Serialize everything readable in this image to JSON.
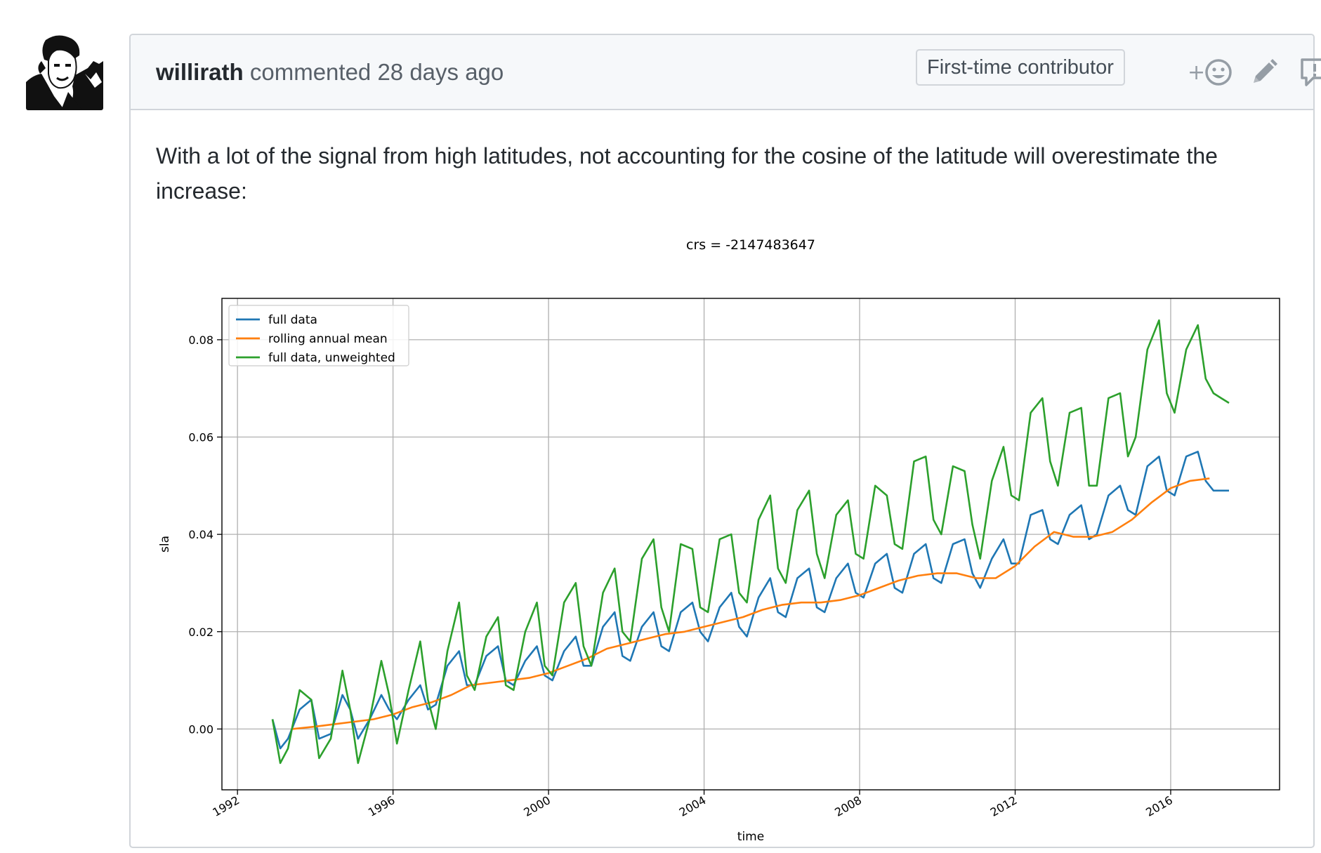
{
  "comment": {
    "author": "willirath",
    "action": "commented",
    "time": "28 days ago",
    "badge": "First-time contributor",
    "icons": [
      "add-reaction-icon",
      "edit-pencil-icon",
      "report-icon"
    ],
    "body": "With a lot of the signal from high latitudes, not accounting for the cosine of the latitude will overestimate the increase:"
  },
  "chart_data": {
    "type": "line",
    "title": "crs = -2147483647",
    "xlabel": "time",
    "ylabel": "sla",
    "xlim": [
      1991.6,
      2018.8
    ],
    "ylim": [
      -0.0125,
      0.0885
    ],
    "xticks": [
      1992,
      1996,
      2000,
      2004,
      2008,
      2012,
      2016
    ],
    "yticks": [
      0.0,
      0.02,
      0.04,
      0.06,
      0.08
    ],
    "ytick_labels": [
      "0.00",
      "0.02",
      "0.04",
      "0.06",
      "0.08"
    ],
    "grid": true,
    "legend_position": "top-left",
    "series": [
      {
        "name": "full data",
        "color": "#1f77b4",
        "x": [
          1992.9,
          1993.1,
          1993.3,
          1993.6,
          1993.9,
          1994.1,
          1994.4,
          1994.7,
          1994.9,
          1995.1,
          1995.4,
          1995.7,
          1995.9,
          1996.1,
          1996.4,
          1996.7,
          1996.9,
          1997.1,
          1997.4,
          1997.7,
          1997.9,
          1998.1,
          1998.4,
          1998.7,
          1998.9,
          1999.1,
          1999.4,
          1999.7,
          1999.9,
          2000.1,
          2000.4,
          2000.7,
          2000.9,
          2001.1,
          2001.4,
          2001.7,
          2001.9,
          2002.1,
          2002.4,
          2002.7,
          2002.9,
          2003.1,
          2003.4,
          2003.7,
          2003.9,
          2004.1,
          2004.4,
          2004.7,
          2004.9,
          2005.1,
          2005.4,
          2005.7,
          2005.9,
          2006.1,
          2006.4,
          2006.7,
          2006.9,
          2007.1,
          2007.4,
          2007.7,
          2007.9,
          2008.1,
          2008.4,
          2008.7,
          2008.9,
          2009.1,
          2009.4,
          2009.7,
          2009.9,
          2010.1,
          2010.4,
          2010.7,
          2010.9,
          2011.1,
          2011.4,
          2011.7,
          2011.9,
          2012.1,
          2012.4,
          2012.7,
          2012.9,
          2013.1,
          2013.4,
          2013.7,
          2013.9,
          2014.1,
          2014.4,
          2014.7,
          2014.9,
          2015.1,
          2015.4,
          2015.7,
          2015.9,
          2016.1,
          2016.4,
          2016.7,
          2016.9,
          2017.1,
          2017.3,
          2017.5
        ],
        "y": [
          0.002,
          -0.004,
          -0.002,
          0.004,
          0.006,
          -0.002,
          -0.001,
          0.007,
          0.004,
          -0.002,
          0.002,
          0.007,
          0.004,
          0.002,
          0.006,
          0.009,
          0.004,
          0.005,
          0.013,
          0.016,
          0.009,
          0.009,
          0.015,
          0.017,
          0.01,
          0.009,
          0.014,
          0.017,
          0.011,
          0.01,
          0.016,
          0.019,
          0.013,
          0.013,
          0.021,
          0.024,
          0.015,
          0.014,
          0.021,
          0.024,
          0.017,
          0.016,
          0.024,
          0.026,
          0.02,
          0.018,
          0.025,
          0.028,
          0.021,
          0.019,
          0.027,
          0.031,
          0.024,
          0.023,
          0.031,
          0.033,
          0.025,
          0.024,
          0.031,
          0.034,
          0.028,
          0.027,
          0.034,
          0.036,
          0.029,
          0.028,
          0.036,
          0.038,
          0.031,
          0.03,
          0.038,
          0.039,
          0.032,
          0.029,
          0.035,
          0.039,
          0.034,
          0.034,
          0.044,
          0.045,
          0.039,
          0.038,
          0.044,
          0.046,
          0.039,
          0.04,
          0.048,
          0.05,
          0.045,
          0.044,
          0.054,
          0.056,
          0.049,
          0.048,
          0.056,
          0.057,
          0.051,
          0.049,
          0.049,
          0.049
        ]
      },
      {
        "name": "rolling annual mean",
        "color": "#ff7f0e",
        "x": [
          1993.4,
          1994.0,
          1994.5,
          1995.0,
          1995.5,
          1996.0,
          1996.5,
          1997.0,
          1997.5,
          1998.0,
          1998.5,
          1999.0,
          1999.5,
          2000.0,
          2000.5,
          2001.0,
          2001.5,
          2002.0,
          2002.5,
          2003.0,
          2003.5,
          2004.0,
          2004.5,
          2005.0,
          2005.5,
          2006.0,
          2006.5,
          2007.0,
          2007.5,
          2008.0,
          2008.5,
          2009.0,
          2009.5,
          2010.0,
          2010.5,
          2011.0,
          2011.5,
          2012.0,
          2012.5,
          2013.0,
          2013.5,
          2014.0,
          2014.5,
          2015.0,
          2015.5,
          2016.0,
          2016.5,
          2017.0
        ],
        "y": [
          0.0,
          0.0005,
          0.001,
          0.0015,
          0.002,
          0.003,
          0.0045,
          0.0055,
          0.007,
          0.009,
          0.0095,
          0.01,
          0.0105,
          0.0115,
          0.013,
          0.0145,
          0.0165,
          0.0175,
          0.0185,
          0.0195,
          0.02,
          0.021,
          0.022,
          0.023,
          0.0245,
          0.0255,
          0.026,
          0.026,
          0.0265,
          0.0275,
          0.029,
          0.0305,
          0.0315,
          0.032,
          0.032,
          0.031,
          0.031,
          0.0335,
          0.0375,
          0.0405,
          0.0395,
          0.0395,
          0.0405,
          0.043,
          0.0465,
          0.0495,
          0.051,
          0.0515
        ]
      },
      {
        "name": "full data, unweighted",
        "color": "#2ca02c",
        "x": [
          1992.9,
          1993.1,
          1993.3,
          1993.6,
          1993.9,
          1994.1,
          1994.4,
          1994.7,
          1994.9,
          1995.1,
          1995.4,
          1995.7,
          1995.9,
          1996.1,
          1996.4,
          1996.7,
          1996.9,
          1997.1,
          1997.4,
          1997.7,
          1997.9,
          1998.1,
          1998.4,
          1998.7,
          1998.9,
          1999.1,
          1999.4,
          1999.7,
          1999.9,
          2000.1,
          2000.4,
          2000.7,
          2000.9,
          2001.1,
          2001.4,
          2001.7,
          2001.9,
          2002.1,
          2002.4,
          2002.7,
          2002.9,
          2003.1,
          2003.4,
          2003.7,
          2003.9,
          2004.1,
          2004.4,
          2004.7,
          2004.9,
          2005.1,
          2005.4,
          2005.7,
          2005.9,
          2006.1,
          2006.4,
          2006.7,
          2006.9,
          2007.1,
          2007.4,
          2007.7,
          2007.9,
          2008.1,
          2008.4,
          2008.7,
          2008.9,
          2009.1,
          2009.4,
          2009.7,
          2009.9,
          2010.1,
          2010.4,
          2010.7,
          2010.9,
          2011.1,
          2011.4,
          2011.7,
          2011.9,
          2012.1,
          2012.4,
          2012.7,
          2012.9,
          2013.1,
          2013.4,
          2013.7,
          2013.9,
          2014.1,
          2014.4,
          2014.7,
          2014.9,
          2015.1,
          2015.4,
          2015.7,
          2015.9,
          2016.1,
          2016.4,
          2016.7,
          2016.9,
          2017.1,
          2017.3,
          2017.5
        ],
        "y": [
          0.002,
          -0.007,
          -0.004,
          0.008,
          0.006,
          -0.006,
          -0.002,
          0.012,
          0.004,
          -0.007,
          0.002,
          0.014,
          0.007,
          -0.003,
          0.008,
          0.018,
          0.006,
          0.0,
          0.016,
          0.026,
          0.011,
          0.008,
          0.019,
          0.023,
          0.009,
          0.008,
          0.02,
          0.026,
          0.013,
          0.011,
          0.026,
          0.03,
          0.017,
          0.013,
          0.028,
          0.033,
          0.02,
          0.018,
          0.035,
          0.039,
          0.025,
          0.02,
          0.038,
          0.037,
          0.025,
          0.024,
          0.039,
          0.04,
          0.028,
          0.026,
          0.043,
          0.048,
          0.033,
          0.03,
          0.045,
          0.049,
          0.036,
          0.031,
          0.044,
          0.047,
          0.036,
          0.035,
          0.05,
          0.048,
          0.038,
          0.037,
          0.055,
          0.056,
          0.043,
          0.04,
          0.054,
          0.053,
          0.042,
          0.035,
          0.051,
          0.058,
          0.048,
          0.047,
          0.065,
          0.068,
          0.055,
          0.05,
          0.065,
          0.066,
          0.05,
          0.05,
          0.068,
          0.069,
          0.056,
          0.06,
          0.078,
          0.084,
          0.069,
          0.065,
          0.078,
          0.083,
          0.072,
          0.069,
          0.068,
          0.067
        ]
      }
    ]
  }
}
